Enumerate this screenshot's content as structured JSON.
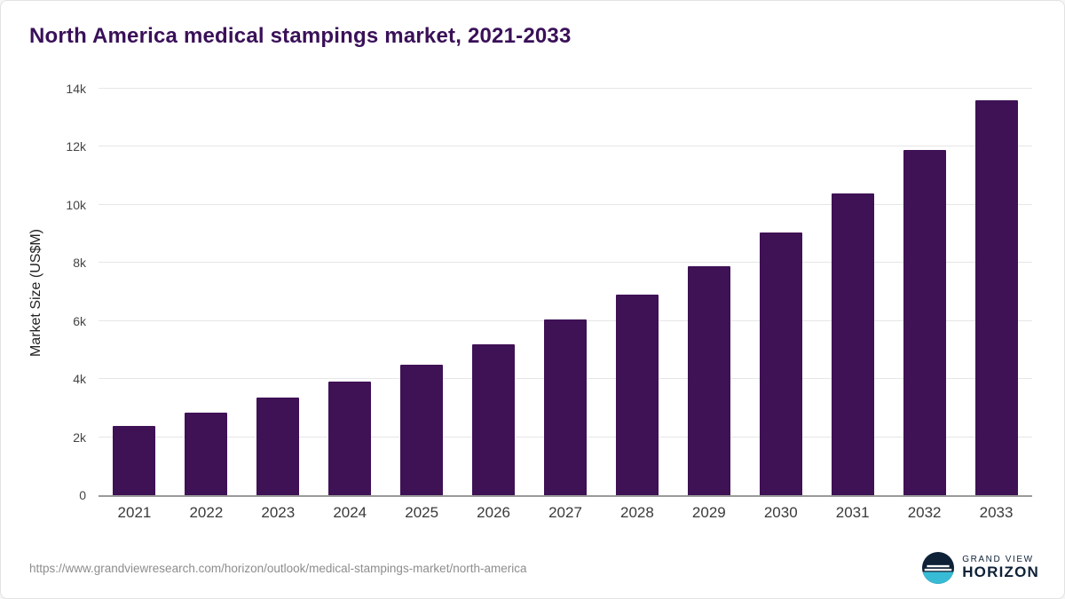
{
  "title": "North America medical stampings market, 2021-2033",
  "chart_data": {
    "type": "bar",
    "title": "North America medical stampings market, 2021-2033",
    "categories": [
      "2021",
      "2022",
      "2023",
      "2024",
      "2025",
      "2026",
      "2027",
      "2028",
      "2029",
      "2030",
      "2031",
      "2032",
      "2033"
    ],
    "values": [
      2400,
      2850,
      3350,
      3900,
      4500,
      5200,
      6050,
      6900,
      7900,
      9050,
      10400,
      11900,
      13600
    ],
    "xlabel": "",
    "ylabel": "Market Size (US$M)",
    "ylim": [
      0,
      14000
    ],
    "yticks": [
      0,
      2000,
      4000,
      6000,
      8000,
      10000,
      12000,
      14000
    ],
    "ytick_labels": [
      "0",
      "2k",
      "4k",
      "6k",
      "8k",
      "10k",
      "12k",
      "14k"
    ],
    "bar_color": "#3f1155",
    "grid": true,
    "legend": "none"
  },
  "footer": {
    "source_url": "https://www.grandviewresearch.com/horizon/outlook/medical-stampings-market/north-america",
    "brand": {
      "line1": "GRAND VIEW",
      "line2": "HORIZON",
      "logo_navy": "#0e2137",
      "logo_teal": "#38bcd6"
    }
  }
}
